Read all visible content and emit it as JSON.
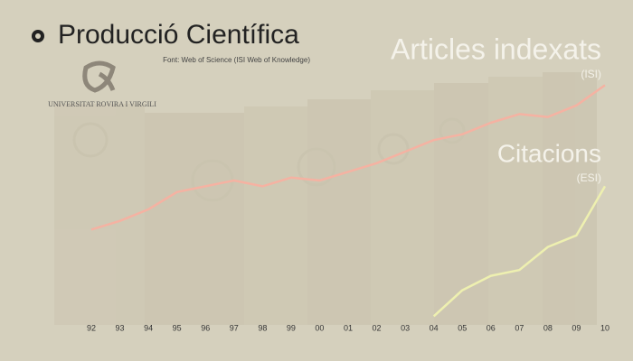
{
  "title": "Producció Científica",
  "source": "Font: Web of Science (ISI Web of Knowledge)",
  "logo_text": "UNIVERSITAT ROVIRA I VIRGILI",
  "chart_data": {
    "type": "line",
    "categories": [
      "92",
      "93",
      "94",
      "95",
      "96",
      "97",
      "98",
      "99",
      "00",
      "01",
      "02",
      "03",
      "04",
      "05",
      "06",
      "07",
      "08",
      "09",
      "10"
    ],
    "ylim": [
      0,
      100
    ],
    "series": [
      {
        "name": "Articles indexats",
        "note": "(ISI)",
        "color": "#f5b2a2",
        "values": [
          33,
          36,
          40,
          46,
          48,
          50,
          48,
          51,
          50,
          53,
          56,
          60,
          64,
          66,
          70,
          73,
          72,
          76,
          83
        ]
      },
      {
        "name": "Citacions",
        "note": "(ESI)",
        "color": "#eef0b0",
        "values": [
          null,
          null,
          null,
          null,
          null,
          null,
          null,
          null,
          null,
          null,
          null,
          null,
          3,
          12,
          17,
          19,
          27,
          31,
          48
        ]
      }
    ]
  }
}
